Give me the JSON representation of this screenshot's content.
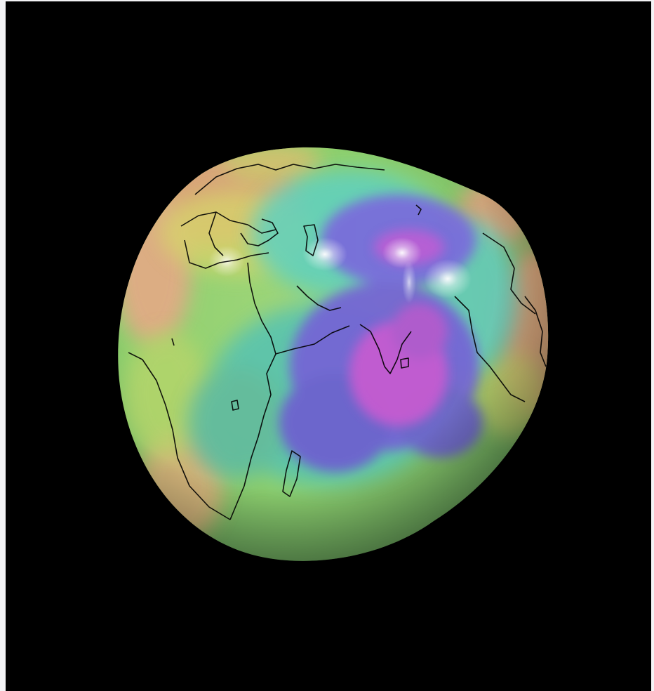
{
  "image": {
    "subject": "geoid-globe",
    "icon": "globe-icon",
    "colors": {
      "background": "#000000",
      "frame": "#f3f3f5",
      "high": "#e2a37e",
      "mid_high": "#d7d56a",
      "mid": "#8ed06e",
      "mid_low": "#5dc9b9",
      "low": "#7b69d9",
      "lowest": "#c35bcf",
      "coastline": "#000000"
    }
  }
}
